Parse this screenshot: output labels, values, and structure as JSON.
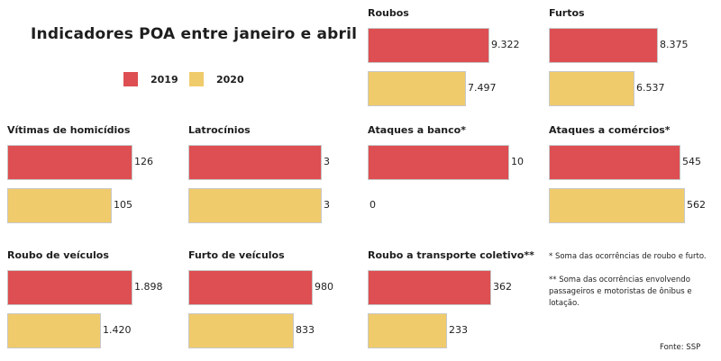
{
  "colors": {
    "y2019": "#dd4f52",
    "y2020": "#f0cb6b"
  },
  "title": "Indicadores POA entre janeiro e abril",
  "legend": {
    "label_2019": "2019",
    "label_2020": "2020"
  },
  "notes": {
    "note1": "* Soma das ocorrências de roubo e furto.",
    "note2_line1": "** Soma das ocorrências envolvendo",
    "note2_line2": "passageiros e motoristas de ônibus e lotação."
  },
  "source": "Fonte: SSP",
  "chart_data": [
    {
      "type": "bar",
      "title": "Roubos",
      "categories": [
        "2019",
        "2020"
      ],
      "values": [
        9322,
        7497
      ],
      "labels": [
        "9.322",
        "7.497"
      ]
    },
    {
      "type": "bar",
      "title": "Furtos",
      "categories": [
        "2019",
        "2020"
      ],
      "values": [
        8375,
        6537
      ],
      "labels": [
        "8.375",
        "6.537"
      ]
    },
    {
      "type": "bar",
      "title": "Vítimas de homicídios",
      "categories": [
        "2019",
        "2020"
      ],
      "values": [
        126,
        105
      ],
      "labels": [
        "126",
        "105"
      ]
    },
    {
      "type": "bar",
      "title": "Latrocínios",
      "categories": [
        "2019",
        "2020"
      ],
      "values": [
        3,
        3
      ],
      "labels": [
        "3",
        "3"
      ]
    },
    {
      "type": "bar",
      "title": "Ataques a banco*",
      "categories": [
        "2019",
        "2020"
      ],
      "values": [
        10,
        0
      ],
      "labels": [
        "10",
        "0"
      ]
    },
    {
      "type": "bar",
      "title": "Ataques a comércios*",
      "categories": [
        "2019",
        "2020"
      ],
      "values": [
        545,
        562
      ],
      "labels": [
        "545",
        "562"
      ]
    },
    {
      "type": "bar",
      "title": "Roubo de veículos",
      "categories": [
        "2019",
        "2020"
      ],
      "values": [
        1898,
        1420
      ],
      "labels": [
        "1.898",
        "1.420"
      ]
    },
    {
      "type": "bar",
      "title": "Furto de veículos",
      "categories": [
        "2019",
        "2020"
      ],
      "values": [
        980,
        833
      ],
      "labels": [
        "980",
        "833"
      ]
    },
    {
      "type": "bar",
      "title": "Roubo a transporte coletivo**",
      "categories": [
        "2019",
        "2020"
      ],
      "values": [
        362,
        233
      ],
      "labels": [
        "362",
        "233"
      ]
    }
  ]
}
